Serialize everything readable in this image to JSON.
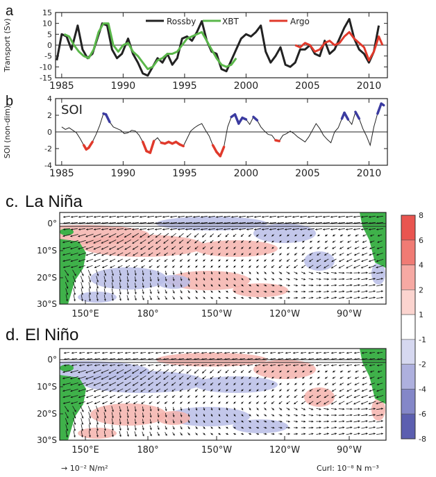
{
  "chart_data": [
    {
      "type": "line",
      "panel_label": "a",
      "ylabel": "Transport (Sv)",
      "xlim": [
        1984.5,
        2011.5
      ],
      "ylim": [
        -15,
        15
      ],
      "x_ticks": [
        "1985",
        "1990",
        "1995",
        "2000",
        "2005",
        "2010"
      ],
      "y_ticks": [
        "15",
        "10",
        "5",
        "0",
        "-5",
        "-10",
        "-15"
      ],
      "colors": {
        "Rossby": "#222222",
        "XBT": "#5ab74a",
        "Argo": "#e0392b"
      },
      "series": [
        {
          "name": "Rossby",
          "x": [
            1984.6,
            1985.0,
            1985.4,
            1985.8,
            1986.3,
            1986.7,
            1987.1,
            1987.5,
            1987.9,
            1988.3,
            1988.7,
            1989.1,
            1989.5,
            1989.9,
            1990.4,
            1990.8,
            1991.2,
            1991.6,
            1992.0,
            1992.4,
            1992.8,
            1993.2,
            1993.6,
            1994.0,
            1994.4,
            1994.8,
            1995.2,
            1995.6,
            1996.0,
            1996.4,
            1996.8,
            1997.2,
            1997.6,
            1998.0,
            1998.4,
            1998.8,
            1999.2,
            1999.6,
            2000.0,
            2000.4,
            2000.8,
            2001.2,
            2001.6,
            2002.0,
            2002.4,
            2002.8,
            2003.2,
            2003.6,
            2004.0,
            2004.4,
            2004.8,
            2005.2,
            2005.6,
            2006.0,
            2006.4,
            2006.8,
            2007.2,
            2007.6,
            2008.0,
            2008.4,
            2008.8,
            2009.2,
            2009.6,
            2010.0,
            2010.4,
            2010.8
          ],
          "y": [
            -7,
            5,
            4,
            -2,
            9,
            -2,
            -6,
            -4,
            3,
            10,
            9,
            -2,
            -6,
            -4,
            3,
            -4,
            -8,
            -13,
            -14,
            -10,
            -6,
            -8,
            -4,
            -9,
            -6,
            3,
            4,
            2,
            6,
            11,
            2,
            -3,
            -4,
            -11,
            -12,
            -7,
            -2,
            3,
            5,
            4,
            6,
            9,
            -3,
            -8,
            -5,
            -1,
            -9,
            -10,
            -8,
            -2,
            -2,
            0,
            -4,
            -5,
            2,
            -4,
            -2,
            3,
            8,
            12,
            3,
            -2,
            -4,
            -8,
            -3,
            9
          ]
        },
        {
          "name": "XBT",
          "x": [
            1985.2,
            1985.6,
            1986.0,
            1986.4,
            1986.8,
            1987.2,
            1987.6,
            1988.0,
            1988.4,
            1988.8,
            1989.2,
            1989.6,
            1990.0,
            1990.4,
            1990.8,
            1991.2,
            1991.6,
            1992.0,
            1992.4,
            1992.8,
            1993.2,
            1993.6,
            1994.0,
            1994.4,
            1994.8,
            1995.2,
            1995.6,
            1996.0,
            1996.4,
            1996.8,
            1997.2,
            1997.6,
            1998.0,
            1998.4,
            1998.8,
            1999.2
          ],
          "y": [
            5,
            4,
            0,
            -3,
            -5,
            -6,
            -2,
            6,
            10,
            10,
            0,
            -3,
            0,
            1,
            -3,
            -5,
            -8,
            -11,
            -10,
            -7,
            -6,
            -4,
            -4,
            -3,
            0,
            3,
            4,
            5,
            6,
            2,
            -2,
            -6,
            -9,
            -10,
            -9,
            -6
          ]
        },
        {
          "name": "Argo",
          "x": [
            2004.0,
            2004.4,
            2004.8,
            2005.2,
            2005.6,
            2006.0,
            2006.4,
            2006.8,
            2007.2,
            2007.6,
            2008.0,
            2008.4,
            2008.8,
            2009.2,
            2009.6,
            2010.0,
            2010.4,
            2010.8,
            2011.1
          ],
          "y": [
            0,
            -1,
            1,
            0,
            -3,
            -2,
            1,
            2,
            0,
            1,
            4,
            6,
            3,
            1,
            -1,
            -7,
            -3,
            4,
            0
          ]
        }
      ]
    },
    {
      "type": "line",
      "panel_label": "b",
      "title": "SOI",
      "ylabel": "SOI (non-dim)",
      "xlim": [
        1984.5,
        2011.5
      ],
      "ylim": [
        -4,
        4
      ],
      "x_ticks": [
        "1985",
        "1990",
        "1995",
        "2000",
        "2005",
        "2010"
      ],
      "y_ticks": [
        "4",
        "2",
        "0",
        "-2",
        "-4"
      ],
      "highlight": {
        "positive_color": "#3b3ba0",
        "negative_color": "#e0392b",
        "threshold": 1
      },
      "series": [
        {
          "name": "SOI",
          "x": [
            1985.0,
            1985.3,
            1985.6,
            1985.9,
            1986.2,
            1986.5,
            1986.8,
            1987.0,
            1987.2,
            1987.5,
            1987.8,
            1988.1,
            1988.4,
            1988.6,
            1988.9,
            1989.2,
            1989.5,
            1989.8,
            1990.1,
            1990.4,
            1990.7,
            1991.0,
            1991.3,
            1991.6,
            1991.9,
            1992.2,
            1992.5,
            1992.8,
            1993.1,
            1993.4,
            1993.7,
            1994.0,
            1994.3,
            1994.6,
            1994.9,
            1995.2,
            1995.5,
            1995.8,
            1996.1,
            1996.4,
            1996.7,
            1997.0,
            1997.3,
            1997.6,
            1997.9,
            1998.2,
            1998.5,
            1998.8,
            1999.1,
            1999.4,
            1999.7,
            2000.0,
            2000.3,
            2000.6,
            2000.9,
            2001.2,
            2001.5,
            2001.8,
            2002.1,
            2002.4,
            2002.7,
            2003.0,
            2003.3,
            2003.6,
            2003.9,
            2004.2,
            2004.5,
            2004.8,
            2005.1,
            2005.4,
            2005.7,
            2006.0,
            2006.3,
            2006.6,
            2006.9,
            2007.2,
            2007.5,
            2007.8,
            2008.0,
            2008.3,
            2008.6,
            2008.9,
            2009.2,
            2009.5,
            2009.8,
            2010.1,
            2010.4,
            2010.7,
            2011.0,
            2011.2
          ],
          "y": [
            0.6,
            0.3,
            0.5,
            0.2,
            -0.1,
            -0.8,
            -1.6,
            -2.1,
            -1.9,
            -1.2,
            -0.3,
            0.8,
            2.2,
            2.1,
            1.2,
            0.6,
            0.4,
            0.2,
            -0.2,
            -0.1,
            0.2,
            0.1,
            -0.4,
            -1.2,
            -2.3,
            -2.5,
            -1.1,
            -0.7,
            -1.3,
            -1.4,
            -1.2,
            -1.4,
            -1.2,
            -1.5,
            -1.7,
            -0.8,
            0.1,
            0.5,
            0.8,
            1.0,
            0.2,
            -0.5,
            -1.6,
            -2.4,
            -2.9,
            -1.8,
            0.6,
            1.8,
            2.1,
            1.0,
            1.7,
            1.5,
            0.9,
            1.8,
            1.4,
            0.6,
            0.1,
            -0.3,
            -0.4,
            -1.0,
            -1.1,
            -0.4,
            -0.2,
            0.1,
            -0.2,
            -0.6,
            -0.9,
            -1.2,
            -0.6,
            0.2,
            1.0,
            0.4,
            -0.4,
            -0.9,
            -1.3,
            0.0,
            0.5,
            1.6,
            2.3,
            1.5,
            0.9,
            2.4,
            1.6,
            0.4,
            -0.5,
            -1.6,
            0.6,
            2.2,
            3.4,
            3.2
          ]
        }
      ]
    },
    {
      "type": "heatmap",
      "panel_label": "c.",
      "title": "La Niña",
      "x_ticks": [
        "150°E",
        "180°",
        "150°W",
        "120°W",
        "90°W"
      ],
      "y_ticks": [
        "0°",
        "10°S",
        "20°S",
        "30°S"
      ]
    },
    {
      "type": "heatmap",
      "panel_label": "d.",
      "title": "El Niño",
      "x_ticks": [
        "150°E",
        "180°",
        "150°W",
        "120°W",
        "90°W"
      ],
      "y_ticks": [
        "0°",
        "10°S",
        "20°S",
        "30°S"
      ]
    }
  ],
  "colorbar": {
    "labels": [
      "8",
      "6",
      "4",
      "2",
      "1",
      "-1",
      "-2",
      "-4",
      "-6",
      "-8"
    ],
    "colors": [
      "#e95550",
      "#f07b74",
      "#f6a9a3",
      "#fbd4cf",
      "#ffffff",
      "#d6d8f0",
      "#aeb0de",
      "#8487c8",
      "#5c5fb0"
    ]
  },
  "map_colors": {
    "land": "#3fb14a",
    "positive": "#f4b3ad",
    "negative": "#b9bde6"
  },
  "footer": {
    "vector_scale": "→ 10⁻² N/m²",
    "curl_units": "Curl: 10⁻⁸ N m⁻³"
  }
}
